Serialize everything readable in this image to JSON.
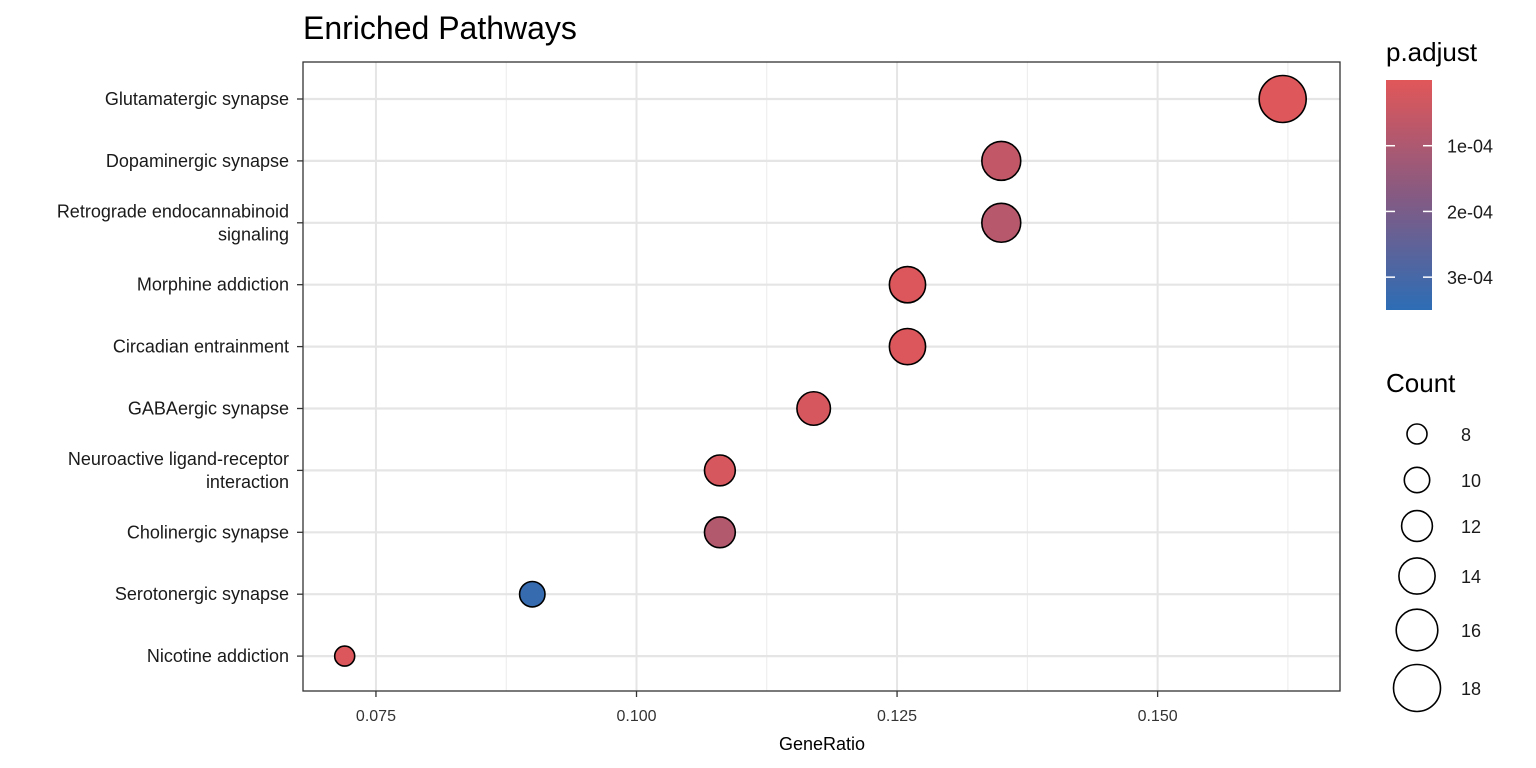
{
  "chart_data": {
    "type": "scatter",
    "title": "Enriched Pathways",
    "xlabel": "GeneRatio",
    "ylabel": "",
    "xlim": [
      0.068,
      0.1675
    ],
    "xticks": [
      0.075,
      0.1,
      0.125,
      0.15
    ],
    "xtick_labels": [
      "0.075",
      "0.100",
      "0.125",
      "0.150"
    ],
    "grid": true,
    "points": [
      {
        "label": "Glutamatergic synapse",
        "lines": [
          "Glutamatergic synapse"
        ],
        "x": 0.162,
        "count": 18,
        "p_adjust": 5e-06
      },
      {
        "label": "Dopaminergic synapse",
        "lines": [
          "Dopaminergic synapse"
        ],
        "x": 0.135,
        "count": 15,
        "p_adjust": 6e-05
      },
      {
        "label": "Retrograde endocannabinoid signaling",
        "lines": [
          "Retrograde endocannabinoid",
          "signaling"
        ],
        "x": 0.135,
        "count": 15,
        "p_adjust": 8e-05
      },
      {
        "label": "Morphine addiction",
        "lines": [
          "Morphine addiction"
        ],
        "x": 0.126,
        "count": 14,
        "p_adjust": 1e-05
      },
      {
        "label": "Circadian entrainment",
        "lines": [
          "Circadian entrainment"
        ],
        "x": 0.126,
        "count": 14,
        "p_adjust": 1e-05
      },
      {
        "label": "GABAergic synapse",
        "lines": [
          "GABAergic synapse"
        ],
        "x": 0.117,
        "count": 13,
        "p_adjust": 2e-05
      },
      {
        "label": "Neuroactive ligand-receptor interaction",
        "lines": [
          "Neuroactive ligand-receptor",
          "interaction"
        ],
        "x": 0.108,
        "count": 12,
        "p_adjust": 2e-05
      },
      {
        "label": "Cholinergic synapse",
        "lines": [
          "Cholinergic synapse"
        ],
        "x": 0.108,
        "count": 12,
        "p_adjust": 9e-05
      },
      {
        "label": "Serotonergic synapse",
        "lines": [
          "Serotonergic synapse"
        ],
        "x": 0.09,
        "count": 10,
        "p_adjust": 0.00033
      },
      {
        "label": "Nicotine addiction",
        "lines": [
          "Nicotine addiction"
        ],
        "x": 0.072,
        "count": 8,
        "p_adjust": 1e-05
      }
    ],
    "color_legend": {
      "title": "p.adjust",
      "range": [
        0.0,
        0.00035
      ],
      "low_color": "#e15759",
      "high_color": "#2d6db5",
      "mid_color": "#865a82",
      "ticks": [
        0.0001,
        0.0002,
        0.0003
      ],
      "tick_labels": [
        "1e-04",
        "2e-04",
        "3e-04"
      ]
    },
    "size_legend": {
      "title": "Count",
      "values": [
        8,
        10,
        12,
        14,
        16,
        18
      ],
      "labels": [
        "8",
        "10",
        "12",
        "14",
        "16",
        "18"
      ]
    }
  }
}
